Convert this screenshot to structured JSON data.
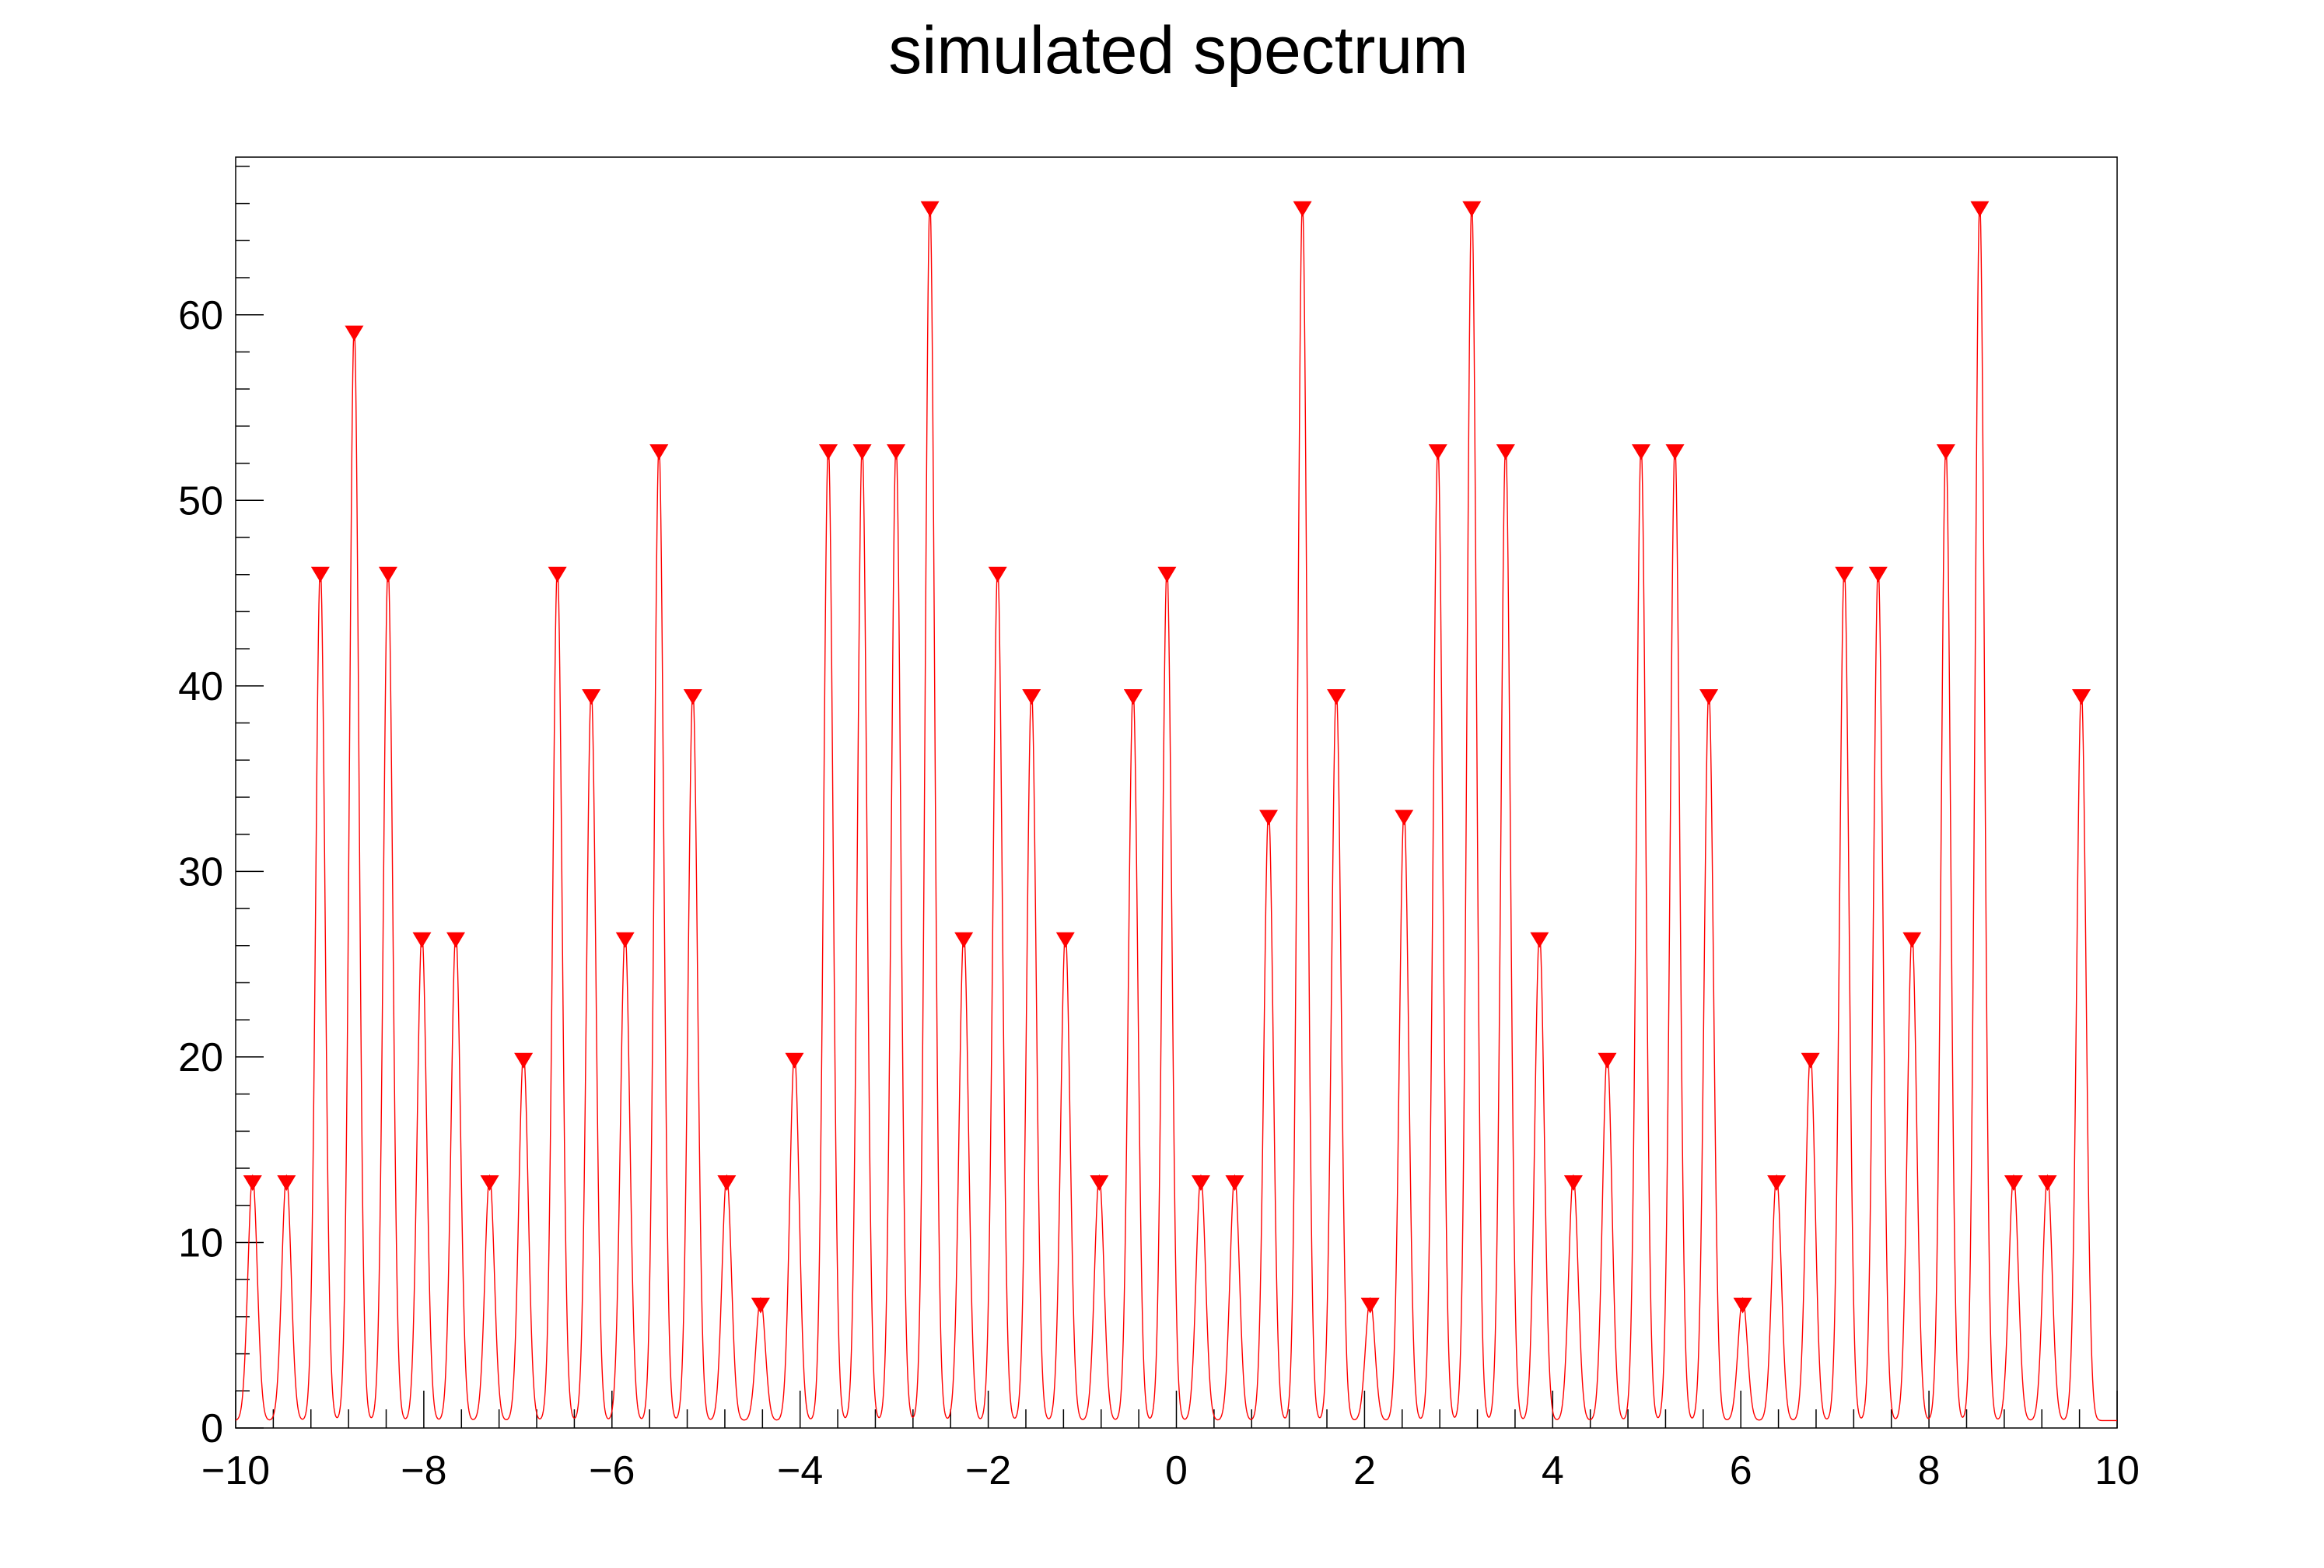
{
  "chart_data": {
    "type": "line",
    "title": "simulated spectrum",
    "xlabel": "",
    "ylabel": "",
    "xlim": [
      -10,
      10
    ],
    "ylim": [
      0,
      68.5
    ],
    "x_ticks": [
      -10,
      -8,
      -6,
      -4,
      -2,
      0,
      2,
      4,
      6,
      8,
      10
    ],
    "x_tick_labels": [
      "−10",
      "−8",
      "−6",
      "−4",
      "−2",
      "0",
      "2",
      "4",
      "6",
      "8",
      "10"
    ],
    "y_ticks": [
      0,
      10,
      20,
      30,
      40,
      50,
      60
    ],
    "y_tick_labels": [
      "0",
      "10",
      "20",
      "30",
      "40",
      "50",
      "60"
    ],
    "grid": false,
    "legend": "none",
    "peak_width_sigma": 0.05,
    "baseline": 0.4,
    "colors": {
      "curve": "#ff0000",
      "markers": "#ff0000",
      "frame": "#000000"
    },
    "peaks": [
      {
        "x": -9.82,
        "y": 13.2
      },
      {
        "x": -9.46,
        "y": 13.2
      },
      {
        "x": -9.1,
        "y": 46.0
      },
      {
        "x": -8.74,
        "y": 59.0
      },
      {
        "x": -8.38,
        "y": 46.0
      },
      {
        "x": -8.02,
        "y": 26.3
      },
      {
        "x": -7.66,
        "y": 26.3
      },
      {
        "x": -7.3,
        "y": 13.2
      },
      {
        "x": -6.94,
        "y": 19.8
      },
      {
        "x": -6.58,
        "y": 46.0
      },
      {
        "x": -6.22,
        "y": 39.4
      },
      {
        "x": -5.86,
        "y": 26.3
      },
      {
        "x": -5.5,
        "y": 52.6
      },
      {
        "x": -5.14,
        "y": 39.4
      },
      {
        "x": -4.78,
        "y": 13.2
      },
      {
        "x": -4.42,
        "y": 6.6
      },
      {
        "x": -4.06,
        "y": 19.8
      },
      {
        "x": -3.7,
        "y": 52.6
      },
      {
        "x": -3.34,
        "y": 52.6
      },
      {
        "x": -2.98,
        "y": 52.6
      },
      {
        "x": -2.62,
        "y": 65.7
      },
      {
        "x": -2.26,
        "y": 26.3
      },
      {
        "x": -1.9,
        "y": 46.0
      },
      {
        "x": -1.54,
        "y": 39.4
      },
      {
        "x": -1.18,
        "y": 26.3
      },
      {
        "x": -0.82,
        "y": 13.2
      },
      {
        "x": -0.46,
        "y": 39.4
      },
      {
        "x": -0.1,
        "y": 46.0
      },
      {
        "x": 0.26,
        "y": 13.2
      },
      {
        "x": 0.62,
        "y": 13.2
      },
      {
        "x": 0.98,
        "y": 32.9
      },
      {
        "x": 1.34,
        "y": 65.7
      },
      {
        "x": 1.7,
        "y": 39.4
      },
      {
        "x": 2.06,
        "y": 6.6
      },
      {
        "x": 2.42,
        "y": 32.9
      },
      {
        "x": 2.78,
        "y": 52.6
      },
      {
        "x": 3.14,
        "y": 65.7
      },
      {
        "x": 3.5,
        "y": 52.6
      },
      {
        "x": 3.86,
        "y": 26.3
      },
      {
        "x": 4.22,
        "y": 13.2
      },
      {
        "x": 4.58,
        "y": 19.8
      },
      {
        "x": 4.94,
        "y": 52.6
      },
      {
        "x": 5.3,
        "y": 52.6
      },
      {
        "x": 5.66,
        "y": 39.4
      },
      {
        "x": 6.02,
        "y": 6.6
      },
      {
        "x": 6.38,
        "y": 13.2
      },
      {
        "x": 6.74,
        "y": 19.8
      },
      {
        "x": 7.1,
        "y": 46.0
      },
      {
        "x": 7.46,
        "y": 46.0
      },
      {
        "x": 7.82,
        "y": 26.3
      },
      {
        "x": 8.18,
        "y": 52.6
      },
      {
        "x": 8.54,
        "y": 65.7
      },
      {
        "x": 8.9,
        "y": 13.2
      },
      {
        "x": 9.26,
        "y": 13.2
      },
      {
        "x": 9.62,
        "y": 39.4
      }
    ]
  }
}
